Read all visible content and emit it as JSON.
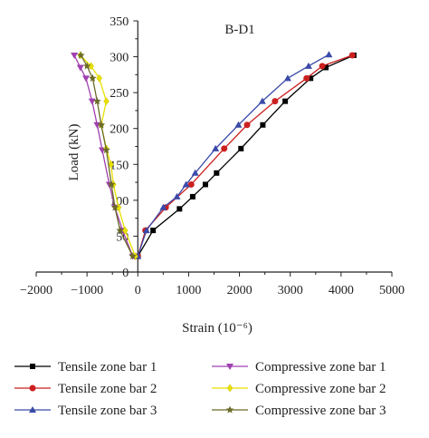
{
  "chart_data": {
    "type": "line",
    "title": "B-D1",
    "xlabel": "Strain (10⁻⁶)",
    "ylabel": "Load (kN)",
    "xlim": [
      -2000,
      5000
    ],
    "ylim": [
      0,
      350
    ],
    "x_ticks": [
      "−2000",
      "−1000",
      "0",
      "1000",
      "2000",
      "3000",
      "4000",
      "5000"
    ],
    "y_ticks": [
      "0",
      "50",
      "100",
      "150",
      "200",
      "250",
      "300",
      "350"
    ],
    "grid": false,
    "legend_position": "bottom",
    "series": [
      {
        "name": "Tensile zone bar 1",
        "color": "#000000",
        "marker": "square",
        "points": [
          [
            0,
            22
          ],
          [
            300,
            58
          ],
          [
            820,
            88
          ],
          [
            1080,
            105
          ],
          [
            1330,
            122
          ],
          [
            1550,
            138
          ],
          [
            2030,
            172
          ],
          [
            2460,
            205
          ],
          [
            2900,
            238
          ],
          [
            3400,
            270
          ],
          [
            3700,
            285
          ],
          [
            4250,
            302
          ]
        ]
      },
      {
        "name": "Tensile zone bar 2",
        "color": "#cc1f1f",
        "marker": "circle",
        "points": [
          [
            0,
            22
          ],
          [
            150,
            58
          ],
          [
            550,
            90
          ],
          [
            1050,
            122
          ],
          [
            1700,
            172
          ],
          [
            2150,
            205
          ],
          [
            2700,
            238
          ],
          [
            3320,
            270
          ],
          [
            3630,
            287
          ],
          [
            4220,
            302
          ]
        ]
      },
      {
        "name": "Tensile zone bar 3",
        "color": "#3a4aa8",
        "marker": "triangle-up",
        "points": [
          [
            0,
            22
          ],
          [
            170,
            58
          ],
          [
            500,
            90
          ],
          [
            770,
            105
          ],
          [
            950,
            122
          ],
          [
            1130,
            138
          ],
          [
            1530,
            172
          ],
          [
            1980,
            205
          ],
          [
            2450,
            238
          ],
          [
            2950,
            270
          ],
          [
            3360,
            287
          ],
          [
            3760,
            303
          ]
        ]
      },
      {
        "name": "Compressive zone bar 1",
        "color": "#a040b0",
        "marker": "triangle-down",
        "points": [
          [
            -100,
            22
          ],
          [
            -300,
            58
          ],
          [
            -450,
            90
          ],
          [
            -560,
            122
          ],
          [
            -700,
            170
          ],
          [
            -800,
            205
          ],
          [
            -900,
            238
          ],
          [
            -1020,
            270
          ],
          [
            -1130,
            285
          ],
          [
            -1250,
            302
          ]
        ]
      },
      {
        "name": "Compressive zone bar 2",
        "color": "#e8e000",
        "marker": "diamond",
        "points": [
          [
            -50,
            22
          ],
          [
            -250,
            58
          ],
          [
            -380,
            90
          ],
          [
            -480,
            122
          ],
          [
            -530,
            150
          ],
          [
            -620,
            172
          ],
          [
            -720,
            205
          ],
          [
            -620,
            238
          ],
          [
            -760,
            270
          ],
          [
            -920,
            287
          ],
          [
            -1130,
            302
          ]
        ]
      },
      {
        "name": "Compressive zone bar 3",
        "color": "#6b6b2a",
        "marker": "star",
        "points": [
          [
            -100,
            22
          ],
          [
            -350,
            58
          ],
          [
            -450,
            90
          ],
          [
            -520,
            122
          ],
          [
            -620,
            170
          ],
          [
            -720,
            205
          ],
          [
            -800,
            238
          ],
          [
            -890,
            270
          ],
          [
            -1000,
            287
          ],
          [
            -1120,
            302
          ]
        ]
      }
    ]
  }
}
